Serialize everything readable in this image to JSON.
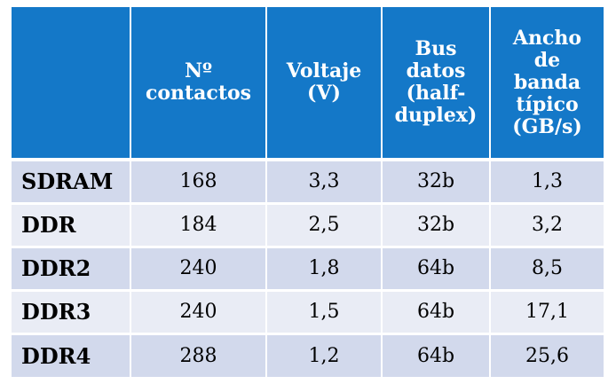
{
  "table": {
    "headers": [
      {
        "lines": [
          ""
        ]
      },
      {
        "lines": [
          "Nº",
          "contactos"
        ]
      },
      {
        "lines": [
          "Voltaje",
          "(V)"
        ]
      },
      {
        "lines": [
          "Bus",
          "datos",
          "(half-",
          "duplex)"
        ]
      },
      {
        "lines": [
          "Ancho",
          "de",
          "banda",
          "típico",
          "(GB/s)"
        ]
      }
    ],
    "rows": [
      {
        "name": "SDRAM",
        "contactos": "168",
        "voltaje": "3,3",
        "bus": "32b",
        "ancho": "1,3"
      },
      {
        "name": "DDR",
        "contactos": "184",
        "voltaje": "2,5",
        "bus": "32b",
        "ancho": "3,2"
      },
      {
        "name": "DDR2",
        "contactos": "240",
        "voltaje": "1,8",
        "bus": "64b",
        "ancho": "8,5"
      },
      {
        "name": "DDR3",
        "contactos": "240",
        "voltaje": "1,5",
        "bus": "64b",
        "ancho": "17,1"
      },
      {
        "name": "DDR4",
        "contactos": "288",
        "voltaje": "1,2",
        "bus": "64b",
        "ancho": "25,6"
      }
    ]
  },
  "colors": {
    "header_bg": "#1478c8",
    "header_text": "#ffffff",
    "row_odd_bg": "#d2d9ec",
    "row_even_bg": "#e9ecf5"
  }
}
